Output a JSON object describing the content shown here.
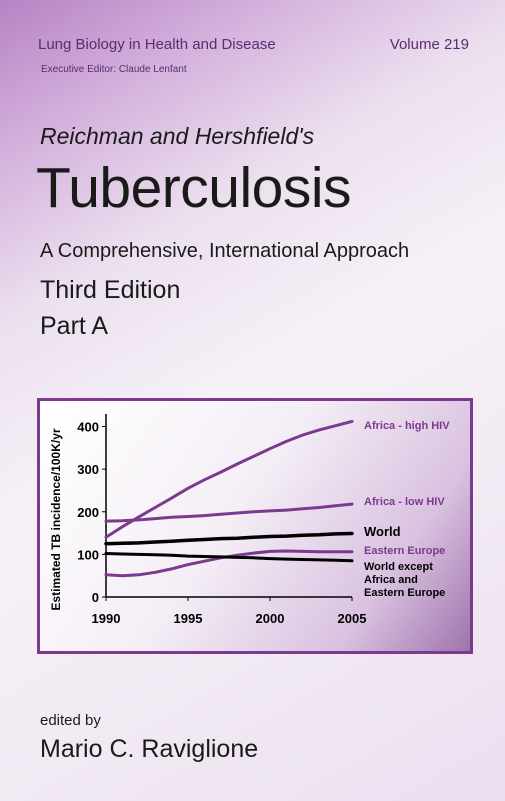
{
  "cover": {
    "series_name": "Lung Biology in Health and Disease",
    "volume": "Volume 219",
    "executive_editor": "Executive Editor: Claude Lenfant",
    "subtitle_author": "Reichman and Hershfield's",
    "title": "Tuberculosis",
    "approach": "A Comprehensive, International Approach",
    "edition": "Third Edition",
    "part": "Part A",
    "edited_by": "edited by",
    "editor_name": "Mario C. Raviglione"
  },
  "colors": {
    "accent_purple": "#7b3a8e",
    "series_black": "#000000"
  },
  "chart_data": {
    "type": "line",
    "title": "",
    "xlabel": "",
    "ylabel": "Estimated TB incidence/100K/yr",
    "xlim": [
      1990,
      2005
    ],
    "ylim": [
      0,
      420
    ],
    "x_ticks": [
      "1990",
      "1995",
      "2000",
      "2005"
    ],
    "y_ticks": [
      "0",
      "100",
      "200",
      "300",
      "400"
    ],
    "x": [
      1990,
      1991,
      1992,
      1993,
      1994,
      1995,
      1996,
      1997,
      1998,
      1999,
      2000,
      2001,
      2002,
      2003,
      2004,
      2005
    ],
    "grid": false,
    "series": [
      {
        "name": "Africa - high HIV",
        "color": "#7b3a8e",
        "bold": false,
        "values": [
          140,
          165,
          188,
          210,
          232,
          255,
          275,
          293,
          312,
          330,
          348,
          365,
          380,
          392,
          402,
          412
        ]
      },
      {
        "name": "Africa - low HIV",
        "color": "#7b3a8e",
        "bold": false,
        "values": [
          178,
          179,
          181,
          184,
          187,
          189,
          191,
          194,
          197,
          200,
          202,
          204,
          207,
          210,
          214,
          218
        ]
      },
      {
        "name": "World",
        "color": "#000000",
        "bold": true,
        "values": [
          125,
          126,
          127,
          129,
          131,
          133,
          135,
          137,
          138,
          140,
          142,
          143,
          145,
          146,
          148,
          149
        ]
      },
      {
        "name": "Eastern Europe",
        "color": "#7b3a8e",
        "bold": false,
        "values": [
          52,
          50,
          52,
          58,
          66,
          76,
          84,
          92,
          98,
          103,
          107,
          108,
          107,
          106,
          106,
          106
        ]
      },
      {
        "name": "World except Africa and Eastern Europe",
        "color": "#000000",
        "bold": false,
        "values": [
          102,
          101,
          100,
          99,
          98,
          96,
          95,
          94,
          93,
          92,
          90,
          89,
          88,
          87,
          86,
          85
        ]
      }
    ],
    "legend_labels": [
      {
        "lines": [
          "Africa - high HIV"
        ],
        "color": "#7b3a8e",
        "bold": false
      },
      {
        "lines": [
          "Africa - low HIV"
        ],
        "color": "#7b3a8e",
        "bold": false
      },
      {
        "lines": [
          "World"
        ],
        "color": "#000000",
        "bold": true
      },
      {
        "lines": [
          "Eastern Europe"
        ],
        "color": "#7b3a8e",
        "bold": false
      },
      {
        "lines": [
          "World except",
          "Africa and",
          "Eastern Europe"
        ],
        "color": "#000000",
        "bold": false
      }
    ]
  }
}
